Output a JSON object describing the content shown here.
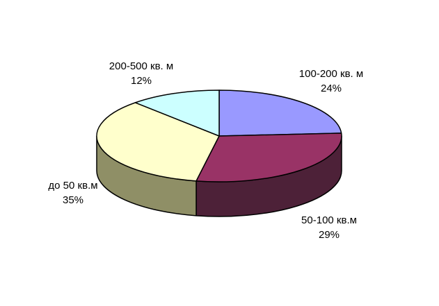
{
  "chart_data": {
    "type": "pie",
    "style": "3d",
    "title": "",
    "background": "#ffffff",
    "outline_color": "#000000",
    "start_angle_deg": 0,
    "direction": "clockwise",
    "legend_position": "none",
    "data_labels": "category-and-percent-outside",
    "slices": [
      {
        "label": "100-200 кв. м",
        "percent": 24,
        "percent_label": "24%",
        "color_top": "#9999ff",
        "color_side": null
      },
      {
        "label": "50-100 кв.м",
        "percent": 29,
        "percent_label": "29%",
        "color_top": "#993366",
        "color_side": "#4d2138"
      },
      {
        "label": "до 50 кв.м",
        "percent": 35,
        "percent_label": "35%",
        "color_top": "#ffffcc",
        "color_side": "#8f8f66"
      },
      {
        "label": "200-500 кв. м",
        "percent": 12,
        "percent_label": "12%",
        "color_top": "#ccffff",
        "color_side": null
      }
    ]
  }
}
